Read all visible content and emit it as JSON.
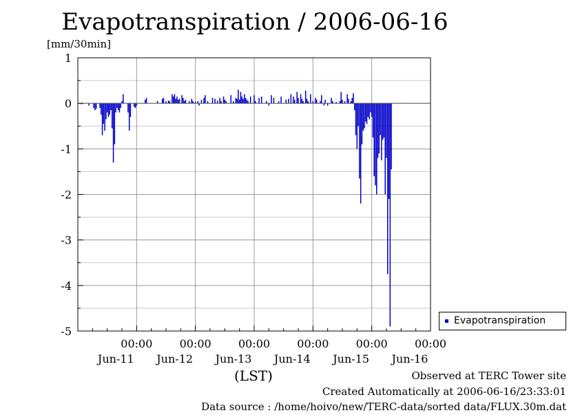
{
  "chart_data": {
    "type": "bar",
    "title": "Evapotranspiration / 2006-06-16",
    "ylabel": "[mm/30min]",
    "xlabel": "(LST)",
    "ylim": [
      -5,
      1
    ],
    "yticks": [
      "1",
      "0",
      "-1",
      "-2",
      "-3",
      "-4",
      "-5"
    ],
    "xlim": [
      "2006-06-10T00:00",
      "2006-06-16T00:00"
    ],
    "xticks": [
      {
        "time": "00:00",
        "date": "Jun-11"
      },
      {
        "time": "00:00",
        "date": "Jun-12"
      },
      {
        "time": "00:00",
        "date": "Jun-13"
      },
      {
        "time": "00:00",
        "date": "Jun-14"
      },
      {
        "time": "00:00",
        "date": "Jun-15"
      },
      {
        "time": "00:00",
        "date": "Jun-16"
      }
    ],
    "grid": true,
    "legend_position": "right-bottom, outside plot",
    "series": [
      {
        "name": "Evapotranspiration",
        "color": "#0000c8",
        "points": [
          [
            "2006-06-10T01:30",
            -0.02
          ],
          [
            "2006-06-10T04:30",
            -0.05
          ],
          [
            "2006-06-10T06:30",
            -0.1
          ],
          [
            "2006-06-10T07:00",
            -0.15
          ],
          [
            "2006-06-10T07:30",
            -0.12
          ],
          [
            "2006-06-10T09:00",
            -0.1
          ],
          [
            "2006-06-10T09:30",
            -0.25
          ],
          [
            "2006-06-10T10:00",
            -0.7
          ],
          [
            "2006-06-10T10:30",
            -0.45
          ],
          [
            "2006-06-10T11:00",
            -0.6
          ],
          [
            "2006-06-10T11:30",
            -0.35
          ],
          [
            "2006-06-10T12:00",
            -0.2
          ],
          [
            "2006-06-10T12:30",
            -0.3
          ],
          [
            "2006-06-10T13:00",
            -0.25
          ],
          [
            "2006-06-10T13:30",
            -0.15
          ],
          [
            "2006-06-10T14:00",
            -0.55
          ],
          [
            "2006-06-10T14:30",
            -1.3
          ],
          [
            "2006-06-10T15:00",
            -0.9
          ],
          [
            "2006-06-10T15:30",
            -0.2
          ],
          [
            "2006-06-10T16:00",
            -0.1
          ],
          [
            "2006-06-10T16:30",
            -0.15
          ],
          [
            "2006-06-10T17:00",
            -0.2
          ],
          [
            "2006-06-10T17:30",
            -0.1
          ],
          [
            "2006-06-10T18:00",
            0.05
          ],
          [
            "2006-06-10T18:30",
            0.2
          ],
          [
            "2006-06-10T20:30",
            -0.2
          ],
          [
            "2006-06-10T21:00",
            -0.6
          ],
          [
            "2006-06-10T21:30",
            -0.3
          ],
          [
            "2006-06-10T23:00",
            -0.08
          ],
          [
            "2006-06-10T23:30",
            -0.1
          ],
          [
            "2006-06-11T00:00",
            -0.05
          ],
          [
            "2006-06-11T03:30",
            0.08
          ],
          [
            "2006-06-11T04:00",
            0.12
          ],
          [
            "2006-06-11T08:30",
            0.05
          ],
          [
            "2006-06-11T10:30",
            0.1
          ],
          [
            "2006-06-11T11:00",
            0.12
          ],
          [
            "2006-06-11T12:00",
            0.05
          ],
          [
            "2006-06-11T13:00",
            0.06
          ],
          [
            "2006-06-11T13:30",
            0.05
          ],
          [
            "2006-06-11T14:30",
            0.2
          ],
          [
            "2006-06-11T15:00",
            0.15
          ],
          [
            "2006-06-11T15:30",
            0.2
          ],
          [
            "2006-06-11T16:00",
            0.1
          ],
          [
            "2006-06-11T16:30",
            0.15
          ],
          [
            "2006-06-11T17:00",
            0.08
          ],
          [
            "2006-06-11T17:30",
            0.1
          ],
          [
            "2006-06-11T18:30",
            0.18
          ],
          [
            "2006-06-11T19:00",
            0.12
          ],
          [
            "2006-06-11T19:30",
            0.05
          ],
          [
            "2006-06-11T20:00",
            0.08
          ],
          [
            "2006-06-11T21:30",
            0.05
          ],
          [
            "2006-06-11T22:30",
            0.1
          ],
          [
            "2006-06-11T23:00",
            0.05
          ],
          [
            "2006-06-12T00:00",
            0.04
          ],
          [
            "2006-06-12T01:00",
            0.05
          ],
          [
            "2006-06-12T01:30",
            -0.05
          ],
          [
            "2006-06-12T02:30",
            0.08
          ],
          [
            "2006-06-12T03:30",
            0.12
          ],
          [
            "2006-06-12T04:00",
            0.18
          ],
          [
            "2006-06-12T05:00",
            0.05
          ],
          [
            "2006-06-12T07:00",
            0.12
          ],
          [
            "2006-06-12T08:00",
            0.1
          ],
          [
            "2006-06-12T09:00",
            0.06
          ],
          [
            "2006-06-12T10:00",
            0.12
          ],
          [
            "2006-06-12T10:30",
            0.05
          ],
          [
            "2006-06-12T11:30",
            0.15
          ],
          [
            "2006-06-12T12:00",
            0.08
          ],
          [
            "2006-06-12T12:30",
            0.05
          ],
          [
            "2006-06-12T14:30",
            0.18
          ],
          [
            "2006-06-12T15:30",
            0.05
          ],
          [
            "2006-06-12T16:30",
            0.12
          ],
          [
            "2006-06-12T17:00",
            0.1
          ],
          [
            "2006-06-12T17:30",
            0.3
          ],
          [
            "2006-06-12T18:00",
            0.08
          ],
          [
            "2006-06-12T18:30",
            0.25
          ],
          [
            "2006-06-12T19:00",
            0.15
          ],
          [
            "2006-06-12T19:30",
            0.1
          ],
          [
            "2006-06-12T20:00",
            0.2
          ],
          [
            "2006-06-12T20:30",
            0.12
          ],
          [
            "2006-06-12T21:00",
            0.08
          ],
          [
            "2006-06-12T21:30",
            0.05
          ],
          [
            "2006-06-12T22:30",
            0.15
          ],
          [
            "2006-06-13T00:00",
            0.18
          ],
          [
            "2006-06-13T00:30",
            0.05
          ],
          [
            "2006-06-13T02:00",
            0.12
          ],
          [
            "2006-06-13T03:00",
            0.15
          ],
          [
            "2006-06-13T05:00",
            0.05
          ],
          [
            "2006-06-13T06:00",
            -0.05
          ],
          [
            "2006-06-13T07:00",
            0.18
          ],
          [
            "2006-06-13T08:00",
            0.12
          ],
          [
            "2006-06-13T10:00",
            0.05
          ],
          [
            "2006-06-13T11:00",
            0.15
          ],
          [
            "2006-06-13T13:00",
            0.08
          ],
          [
            "2006-06-13T14:00",
            0.1
          ],
          [
            "2006-06-13T15:00",
            0.2
          ],
          [
            "2006-06-13T16:00",
            0.15
          ],
          [
            "2006-06-13T16:30",
            0.08
          ],
          [
            "2006-06-13T17:30",
            0.25
          ],
          [
            "2006-06-13T18:00",
            0.12
          ],
          [
            "2006-06-13T19:00",
            0.2
          ],
          [
            "2006-06-13T19:30",
            0.1
          ],
          [
            "2006-06-13T20:00",
            0.05
          ],
          [
            "2006-06-13T21:00",
            0.28
          ],
          [
            "2006-06-13T21:30",
            0.1
          ],
          [
            "2006-06-13T22:00",
            0.05
          ],
          [
            "2006-06-13T23:00",
            0.2
          ],
          [
            "2006-06-14T00:00",
            0.05
          ],
          [
            "2006-06-14T01:00",
            0.12
          ],
          [
            "2006-06-14T01:30",
            0.08
          ],
          [
            "2006-06-14T03:00",
            0.05
          ],
          [
            "2006-06-14T03:30",
            0.18
          ],
          [
            "2006-06-14T04:30",
            -0.05
          ],
          [
            "2006-06-14T05:00",
            0.08
          ],
          [
            "2006-06-14T06:00",
            -0.05
          ],
          [
            "2006-06-14T07:30",
            0.12
          ],
          [
            "2006-06-14T08:00",
            0.05
          ],
          [
            "2006-06-14T09:30",
            0.03
          ],
          [
            "2006-06-14T11:00",
            0.05
          ],
          [
            "2006-06-14T11:30",
            0.25
          ],
          [
            "2006-06-14T12:00",
            0.08
          ],
          [
            "2006-06-14T13:00",
            0.05
          ],
          [
            "2006-06-14T14:00",
            0.2
          ],
          [
            "2006-06-14T14:30",
            0.1
          ],
          [
            "2006-06-14T15:30",
            0.05
          ],
          [
            "2006-06-14T16:00",
            0.12
          ],
          [
            "2006-06-14T16:30",
            0.22
          ],
          [
            "2006-06-14T17:00",
            -0.15
          ],
          [
            "2006-06-14T17:30",
            -0.7
          ],
          [
            "2006-06-14T18:00",
            -1.0
          ],
          [
            "2006-06-14T18:30",
            -0.5
          ],
          [
            "2006-06-14T19:00",
            -1.65
          ],
          [
            "2006-06-14T19:30",
            -2.2
          ],
          [
            "2006-06-14T20:00",
            -0.9
          ],
          [
            "2006-06-14T20:30",
            -0.6
          ],
          [
            "2006-06-14T21:00",
            -0.55
          ],
          [
            "2006-06-14T21:30",
            -0.4
          ],
          [
            "2006-06-14T22:00",
            -0.45
          ],
          [
            "2006-06-14T22:30",
            -0.3
          ],
          [
            "2006-06-14T23:00",
            -0.35
          ],
          [
            "2006-06-14T23:30",
            -0.2
          ],
          [
            "2006-06-15T00:00",
            -0.3
          ],
          [
            "2006-06-15T00:30",
            -0.75
          ],
          [
            "2006-06-15T01:00",
            -1.6
          ],
          [
            "2006-06-15T01:30",
            -1.8
          ],
          [
            "2006-06-15T02:00",
            -2.0
          ],
          [
            "2006-06-15T02:30",
            -1.2
          ],
          [
            "2006-06-15T03:00",
            -1.1
          ],
          [
            "2006-06-15T03:30",
            -0.7
          ],
          [
            "2006-06-15T04:00",
            -1.25
          ],
          [
            "2006-06-15T04:30",
            -0.8
          ],
          [
            "2006-06-15T05:00",
            -0.75
          ],
          [
            "2006-06-15T05:30",
            -2.0
          ],
          [
            "2006-06-15T06:00",
            -1.2
          ],
          [
            "2006-06-15T06:30",
            -3.75
          ],
          [
            "2006-06-15T07:00",
            -2.1
          ],
          [
            "2006-06-15T07:30",
            -4.9
          ],
          [
            "2006-06-15T08:00",
            -1.45
          ]
        ]
      }
    ],
    "notes": [
      "Observed at TERC Tower site",
      "Created Automatically at 2006-06-16/23:33:01",
      "Data source : /home/hoivo/new/TERC-data/sorted  data/FLUX.30m.dat"
    ]
  }
}
